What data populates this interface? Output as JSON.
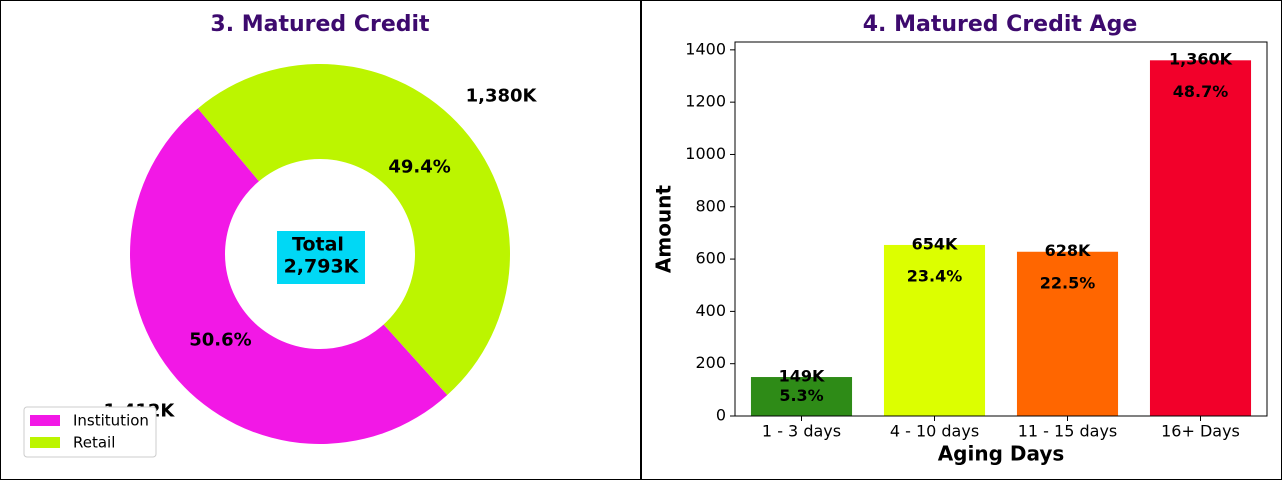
{
  "chart_data": [
    {
      "type": "donut",
      "title": "3. Matured Credit",
      "categories": [
        "Institution",
        "Retail"
      ],
      "values": [
        1412,
        1380
      ],
      "value_labels": [
        "1,412K",
        "1,380K"
      ],
      "percent_labels": [
        "50.6%",
        "49.4%"
      ],
      "colors": [
        "#f218e6",
        "#bcf500"
      ],
      "center_title": "Total",
      "center_text": "2,793K",
      "legend": "lower left"
    },
    {
      "type": "bar",
      "title": "4. Matured Credit Age",
      "categories": [
        "1 - 3 days",
        "4 - 10 days",
        "11 - 15 days",
        "16+ Days"
      ],
      "values": [
        149,
        654,
        628,
        1360
      ],
      "value_labels": [
        "149K",
        "654K",
        "628K",
        "1,360K"
      ],
      "percent_labels": [
        "5.3%",
        "23.4%",
        "22.5%",
        "48.7%"
      ],
      "colors": [
        "#2e8b17",
        "#dcff00",
        "#ff6600",
        "#f2002a"
      ],
      "xlabel": "Aging Days",
      "ylabel": "Amount",
      "ylim": [
        0,
        1430
      ],
      "yticks": [
        0,
        200,
        400,
        600,
        800,
        1000,
        1200,
        1400
      ]
    }
  ]
}
